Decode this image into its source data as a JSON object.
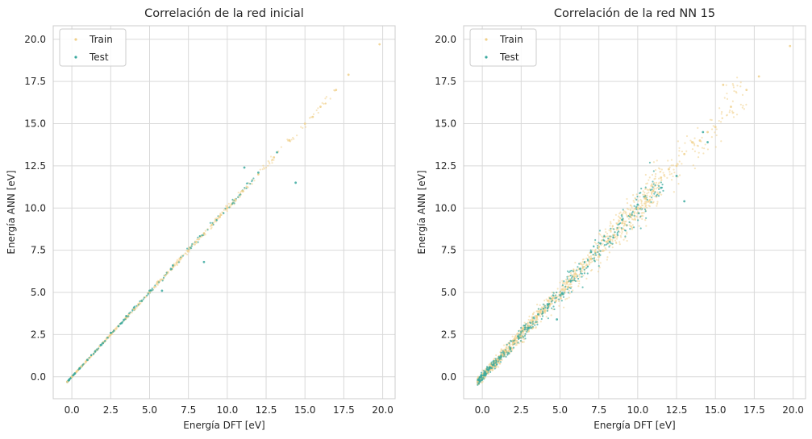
{
  "chart_data": [
    {
      "type": "scatter",
      "title": "Correlación de la red inicial",
      "xlabel": "Energía DFT [eV]",
      "ylabel": "Energía ANN [eV]",
      "xlim": [
        -1.2,
        20.8
      ],
      "ylim": [
        -1.3,
        20.8
      ],
      "xticks": [
        "0.0",
        "2.5",
        "5.0",
        "7.5",
        "10.0",
        "12.5",
        "15.0",
        "17.5",
        "20.0"
      ],
      "yticks": [
        "0.0",
        "2.5",
        "5.0",
        "7.5",
        "10.0",
        "12.5",
        "15.0",
        "17.5",
        "20.0"
      ],
      "grid": true,
      "legend": "top-left",
      "series": [
        {
          "name": "Train",
          "color": "#f0d08a",
          "points": [
            [
              -0.3,
              -0.3
            ],
            [
              0.0,
              0.0
            ],
            [
              0.3,
              0.3
            ],
            [
              0.6,
              0.6
            ],
            [
              1.0,
              1.0
            ],
            [
              1.5,
              1.5
            ],
            [
              2.0,
              2.0
            ],
            [
              2.5,
              2.5
            ],
            [
              3.0,
              3.0
            ],
            [
              3.5,
              3.5
            ],
            [
              4.0,
              4.0
            ],
            [
              4.5,
              4.5
            ],
            [
              5.0,
              5.0
            ],
            [
              5.5,
              5.6
            ],
            [
              6.0,
              6.0
            ],
            [
              6.5,
              6.5
            ],
            [
              7.0,
              7.0
            ],
            [
              7.5,
              7.5
            ],
            [
              8.0,
              8.0
            ],
            [
              8.5,
              8.5
            ],
            [
              9.0,
              9.0
            ],
            [
              9.5,
              9.5
            ],
            [
              10.0,
              10.0
            ],
            [
              10.5,
              10.5
            ],
            [
              11.0,
              11.0
            ],
            [
              12.0,
              12.0
            ],
            [
              13.0,
              13.0
            ],
            [
              14.0,
              14.0
            ],
            [
              15.0,
              15.0
            ],
            [
              15.5,
              15.4
            ],
            [
              16.0,
              16.0
            ],
            [
              17.0,
              17.0
            ],
            [
              17.8,
              17.9
            ],
            [
              19.8,
              19.7
            ]
          ]
        },
        {
          "name": "Test",
          "color": "#3aa99f",
          "points": [
            [
              -0.2,
              -0.2
            ],
            [
              0.2,
              0.2
            ],
            [
              0.5,
              0.5
            ],
            [
              1.0,
              1.0
            ],
            [
              1.5,
              1.5
            ],
            [
              2.0,
              2.0
            ],
            [
              2.5,
              2.6
            ],
            [
              3.0,
              3.0
            ],
            [
              3.5,
              3.6
            ],
            [
              4.0,
              4.1
            ],
            [
              4.5,
              4.5
            ],
            [
              5.0,
              5.1
            ],
            [
              5.8,
              5.1
            ],
            [
              6.5,
              6.6
            ],
            [
              8.5,
              6.8
            ],
            [
              11.1,
              12.4
            ],
            [
              12.0,
              12.1
            ],
            [
              13.2,
              13.3
            ],
            [
              14.4,
              11.5
            ]
          ]
        }
      ]
    },
    {
      "type": "scatter",
      "title": "Correlación de la red NN 15",
      "xlabel": "Energía DFT [eV]",
      "ylabel": "Energía ANN [eV]",
      "xlim": [
        -1.2,
        20.8
      ],
      "ylim": [
        -1.3,
        20.8
      ],
      "xticks": [
        "0.0",
        "2.5",
        "5.0",
        "7.5",
        "10.0",
        "12.5",
        "15.0",
        "17.5",
        "20.0"
      ],
      "yticks": [
        "0.0",
        "2.5",
        "5.0",
        "7.5",
        "10.0",
        "12.5",
        "15.0",
        "17.5",
        "20.0"
      ],
      "grid": true,
      "legend": "top-left",
      "series": [
        {
          "name": "Train",
          "color": "#f0d08a",
          "points": [
            [
              -0.3,
              -0.3
            ],
            [
              0.3,
              0.3
            ],
            [
              1.0,
              1.0
            ],
            [
              1.5,
              1.5
            ],
            [
              2.0,
              2.0
            ],
            [
              2.5,
              2.4
            ],
            [
              3.0,
              3.0
            ],
            [
              3.5,
              3.5
            ],
            [
              4.0,
              3.9
            ],
            [
              4.5,
              4.6
            ],
            [
              5.0,
              5.0
            ],
            [
              5.5,
              5.3
            ],
            [
              6.0,
              6.1
            ],
            [
              6.5,
              6.5
            ],
            [
              7.0,
              7.0
            ],
            [
              7.5,
              7.7
            ],
            [
              8.0,
              8.0
            ],
            [
              8.5,
              8.4
            ],
            [
              9.0,
              9.1
            ],
            [
              9.5,
              9.6
            ],
            [
              10.0,
              10.0
            ],
            [
              10.5,
              10.6
            ],
            [
              11.0,
              11.0
            ],
            [
              11.5,
              11.8
            ],
            [
              12.0,
              12.3
            ],
            [
              12.5,
              12.5
            ],
            [
              13.0,
              13.2
            ],
            [
              13.5,
              13.9
            ],
            [
              14.0,
              14.0
            ],
            [
              14.5,
              14.5
            ],
            [
              15.0,
              14.8
            ],
            [
              15.5,
              17.3
            ],
            [
              16.0,
              16.0
            ],
            [
              17.0,
              17.0
            ],
            [
              17.8,
              17.8
            ],
            [
              19.8,
              19.6
            ]
          ]
        },
        {
          "name": "Test",
          "color": "#3aa99f",
          "points": [
            [
              -0.2,
              -0.2
            ],
            [
              0.2,
              0.2
            ],
            [
              0.7,
              0.7
            ],
            [
              1.2,
              1.2
            ],
            [
              1.8,
              1.7
            ],
            [
              2.3,
              2.4
            ],
            [
              3.0,
              2.9
            ],
            [
              3.6,
              3.7
            ],
            [
              4.2,
              4.3
            ],
            [
              4.8,
              3.4
            ],
            [
              5.2,
              4.9
            ],
            [
              5.7,
              5.7
            ],
            [
              6.3,
              6.4
            ],
            [
              7.0,
              7.4
            ],
            [
              7.6,
              7.9
            ],
            [
              8.2,
              8.0
            ],
            [
              9.0,
              9.3
            ],
            [
              10.0,
              10.2
            ],
            [
              11.5,
              11.2
            ],
            [
              12.5,
              11.9
            ],
            [
              13.0,
              10.4
            ],
            [
              14.2,
              14.5
            ],
            [
              14.5,
              13.9
            ]
          ]
        }
      ]
    }
  ]
}
